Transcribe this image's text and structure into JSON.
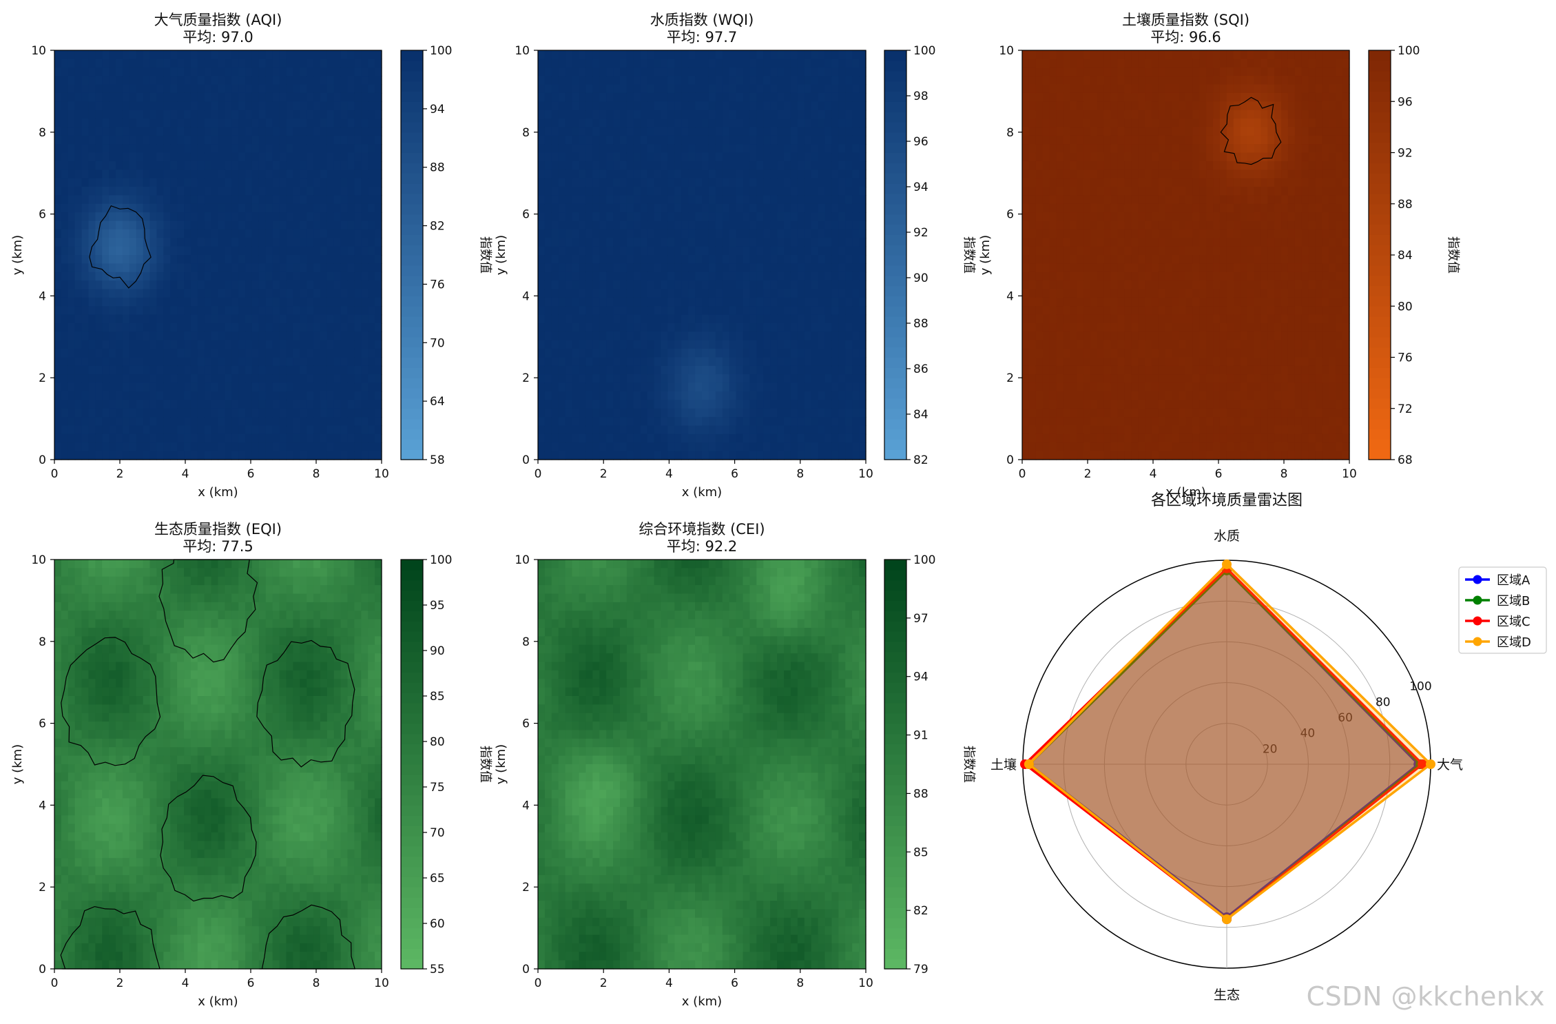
{
  "colors": {
    "blues_light": "#5aa2d6",
    "blues_dark": "#08306b",
    "oranges_light": "#f16913",
    "oranges_dark": "#7f2704",
    "greens_light": "#5db864",
    "greens_dark": "#00441b",
    "region_a": "#0000ff",
    "region_b": "#008000",
    "region_c": "#ff0000",
    "region_d": "#ffa500"
  },
  "chart_data": [
    {
      "type": "heatmap",
      "title": "大气质量指数 (AQI)",
      "subtitle": "平均: 97.0",
      "xlabel": "x (km)",
      "ylabel": "y (km)",
      "xlim": [
        0,
        10
      ],
      "ylim": [
        0,
        10
      ],
      "xticks": [
        "0",
        "2",
        "4",
        "6",
        "8",
        "10"
      ],
      "yticks": [
        "0",
        "2",
        "4",
        "6",
        "8",
        "10"
      ],
      "colormap": "Blues",
      "colorbar_label": "指数值",
      "colorbar_range": [
        58,
        100
      ],
      "colorbar_ticks": [
        "58",
        "64",
        "70",
        "76",
        "82",
        "88",
        "94",
        "100"
      ],
      "hotspots": [
        {
          "x": 2,
          "y": 5.2,
          "radius": 1.6,
          "depth": 1
        }
      ],
      "contour_level": 83
    },
    {
      "type": "heatmap",
      "title": "水质指数 (WQI)",
      "subtitle": "平均: 97.7",
      "xlabel": "x (km)",
      "ylabel": "y (km)",
      "xlim": [
        0,
        10
      ],
      "ylim": [
        0,
        10
      ],
      "xticks": [
        "0",
        "2",
        "4",
        "6",
        "8",
        "10"
      ],
      "yticks": [
        "0",
        "2",
        "4",
        "6",
        "8",
        "10"
      ],
      "colormap": "Blues",
      "colorbar_label": "指数值",
      "colorbar_range": [
        82,
        100
      ],
      "colorbar_ticks": [
        "82",
        "84",
        "86",
        "88",
        "90",
        "92",
        "94",
        "96",
        "98",
        "100"
      ],
      "hotspots": [
        {
          "x": 5,
          "y": 1.8,
          "radius": 1.6,
          "depth": 0.55
        }
      ],
      "contour_level": null
    },
    {
      "type": "heatmap",
      "title": "土壤质量指数 (SQI)",
      "subtitle": "平均: 96.6",
      "xlabel": "x (km)",
      "ylabel": "y (km)",
      "xlim": [
        0,
        10
      ],
      "ylim": [
        0,
        10
      ],
      "xticks": [
        "0",
        "2",
        "4",
        "6",
        "8",
        "10"
      ],
      "yticks": [
        "0",
        "2",
        "4",
        "6",
        "8",
        "10"
      ],
      "colormap": "Oranges",
      "colorbar_label": "指数值",
      "colorbar_range": [
        68,
        100
      ],
      "colorbar_ticks": [
        "68",
        "72",
        "76",
        "80",
        "84",
        "88",
        "92",
        "96",
        "100"
      ],
      "hotspots": [
        {
          "x": 7,
          "y": 8,
          "radius": 1.5,
          "depth": 0.85
        }
      ],
      "contour_level": 86
    },
    {
      "type": "heatmap",
      "title": "生态质量指数 (EQI)",
      "subtitle": "平均: 77.5",
      "xlabel": "x (km)",
      "ylabel": "y (km)",
      "xlim": [
        0,
        10
      ],
      "ylim": [
        0,
        10
      ],
      "xticks": [
        "0",
        "2",
        "4",
        "6",
        "8",
        "10"
      ],
      "yticks": [
        "0",
        "2",
        "4",
        "6",
        "8",
        "10"
      ],
      "colormap": "Greens",
      "colorbar_label": "指数值",
      "colorbar_range": [
        55,
        100
      ],
      "colorbar_ticks": [
        "55",
        "60",
        "65",
        "70",
        "75",
        "80",
        "85",
        "90",
        "95",
        "100"
      ],
      "pattern": "cos_grid",
      "contour_level": 77.5
    },
    {
      "type": "heatmap",
      "title": "综合环境指数 (CEI)",
      "subtitle": "平均: 92.2",
      "xlabel": "x (km)",
      "ylabel": "y (km)",
      "xlim": [
        0,
        10
      ],
      "ylim": [
        0,
        10
      ],
      "xticks": [
        "0",
        "2",
        "4",
        "6",
        "8",
        "10"
      ],
      "yticks": [
        "0",
        "2",
        "4",
        "6",
        "8",
        "10"
      ],
      "colormap": "Greens",
      "colorbar_label": "指数值",
      "colorbar_range": [
        79,
        100
      ],
      "colorbar_ticks": [
        "79",
        "82",
        "85",
        "88",
        "91",
        "94",
        "97",
        "100"
      ],
      "pattern": "combined",
      "contour_level": null
    },
    {
      "type": "radar",
      "title": "各区域环境质量雷达图",
      "axes": [
        "大气",
        "水质",
        "土壤",
        "生态"
      ],
      "rlim": [
        0,
        100
      ],
      "rticks": [
        "20",
        "40",
        "60",
        "80",
        "100"
      ],
      "series": [
        {
          "name": "区域A",
          "values": [
            94,
            95,
            97,
            75
          ],
          "color": "#0000ff"
        },
        {
          "name": "区域B",
          "values": [
            95,
            95,
            97,
            76
          ],
          "color": "#008000"
        },
        {
          "name": "区域C",
          "values": [
            96,
            96,
            99,
            76
          ],
          "color": "#ff0000"
        },
        {
          "name": "区域D",
          "values": [
            100,
            98,
            97,
            76
          ],
          "color": "#ffa500"
        }
      ]
    }
  ],
  "watermark": "CSDN @kkchenkx"
}
